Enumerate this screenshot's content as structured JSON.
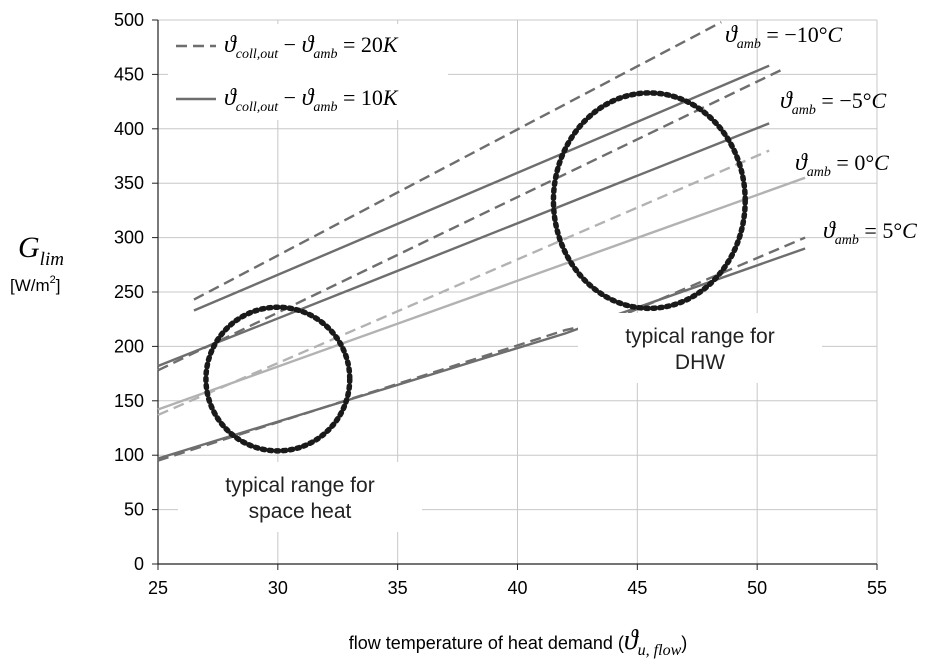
{
  "chart_data": {
    "type": "line",
    "xlabel": "flow temperature of heat demand (",
    "xlabel_symbol": "ϑ",
    "xlabel_subscript": "u, flow",
    "xlabel_close": ")",
    "ylabel_symbol": "G",
    "ylabel_subscript": "lim",
    "ylabel_unit": "[W/m",
    "ylabel_unit_sup": "2",
    "ylabel_unit_close": "]",
    "xlim": [
      25,
      55
    ],
    "ylim": [
      0,
      500
    ],
    "x_ticks": [
      "25",
      "30",
      "35",
      "40",
      "45",
      "50",
      "55"
    ],
    "y_ticks": [
      "0",
      "50",
      "100",
      "150",
      "200",
      "250",
      "300",
      "350",
      "400",
      "450",
      "500"
    ],
    "grid": true,
    "legend": [
      {
        "style": "dashed",
        "symbol": "ϑ",
        "subscript": "coll,out",
        "minus": " − ",
        "symbol2": "ϑ",
        "subscript2": "amb",
        "eq": " = 20",
        "unit": "K"
      },
      {
        "style": "solid",
        "symbol": "ϑ",
        "subscript": "coll,out",
        "minus": " − ",
        "symbol2": "ϑ",
        "subscript2": "amb",
        "eq": " = 10",
        "unit": "K"
      }
    ],
    "series_labels": [
      {
        "symbol": "ϑ",
        "subscript": "amb",
        "value": " = −10°",
        "unit": "C"
      },
      {
        "symbol": "ϑ",
        "subscript": "amb",
        "value": " = −5°",
        "unit": "C"
      },
      {
        "symbol": "ϑ",
        "subscript": "amb",
        "value": " = 0°",
        "unit": "C"
      },
      {
        "symbol": "ϑ",
        "subscript": "amb",
        "value": " = 5°",
        "unit": "C"
      }
    ],
    "series": [
      {
        "ambient": -10,
        "dT": 20,
        "style": "dashed",
        "color": "#6e6e6e",
        "x": [
          26.5,
          48.5
        ],
        "y": [
          243,
          498
        ]
      },
      {
        "ambient": -10,
        "dT": 10,
        "style": "solid",
        "color": "#6e6e6e",
        "x": [
          26.5,
          50.5
        ],
        "y": [
          233,
          458
        ]
      },
      {
        "ambient": -5,
        "dT": 20,
        "style": "dashed",
        "color": "#6e6e6e",
        "x": [
          25.0,
          51.0
        ],
        "y": [
          178,
          454
        ]
      },
      {
        "ambient": -5,
        "dT": 10,
        "style": "solid",
        "color": "#6e6e6e",
        "x": [
          25.0,
          50.5
        ],
        "y": [
          182,
          405
        ]
      },
      {
        "ambient": 0,
        "dT": 20,
        "style": "dashed",
        "color": "#b2b2b2",
        "x": [
          25.0,
          50.5
        ],
        "y": [
          137,
          380
        ]
      },
      {
        "ambient": 0,
        "dT": 10,
        "style": "solid",
        "color": "#b2b2b2",
        "x": [
          25.0,
          52.0
        ],
        "y": [
          142,
          355
        ]
      },
      {
        "ambient": 5,
        "dT": 20,
        "style": "dashed",
        "color": "#6e6e6e",
        "x": [
          25.0,
          42.0,
          44.0,
          52.0
        ],
        "y": [
          95,
          215,
          225,
          300
        ]
      },
      {
        "ambient": 5,
        "dT": 10,
        "style": "solid",
        "color": "#6e6e6e",
        "x": [
          25.0,
          42.0,
          44.0,
          52.0
        ],
        "y": [
          97,
          212,
          228,
          290
        ]
      }
    ],
    "annotations": [
      {
        "lines": [
          "typical range for",
          "space heat"
        ],
        "cx": 30.0,
        "cy": 170,
        "rx": 3.0,
        "ry": 66
      },
      {
        "lines": [
          "typical range for",
          "DHW"
        ],
        "cx": 45.5,
        "cy": 334,
        "rx": 4.0,
        "ry": 99
      }
    ]
  }
}
